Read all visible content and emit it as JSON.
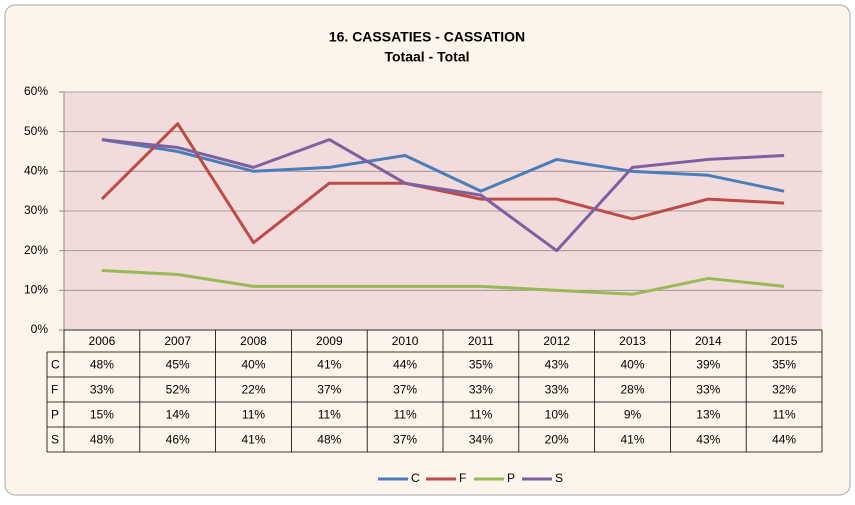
{
  "chart_data": {
    "type": "line",
    "title": "16. CASSATIES - CASSATION",
    "subtitle": "Totaal - Total",
    "categories": [
      "2006",
      "2007",
      "2008",
      "2009",
      "2010",
      "2011",
      "2012",
      "2013",
      "2014",
      "2015"
    ],
    "series": [
      {
        "name": "C",
        "color": "#4a7ebb",
        "values": [
          48,
          45,
          40,
          41,
          44,
          35,
          43,
          40,
          39,
          35
        ],
        "value_labels": [
          "48%",
          "45%",
          "40%",
          "41%",
          "44%",
          "35%",
          "43%",
          "40%",
          "39%",
          "35%"
        ]
      },
      {
        "name": "F",
        "color": "#be4b48",
        "values": [
          33,
          52,
          22,
          37,
          37,
          33,
          33,
          28,
          33,
          32
        ],
        "value_labels": [
          "33%",
          "52%",
          "22%",
          "37%",
          "37%",
          "33%",
          "33%",
          "28%",
          "33%",
          "32%"
        ]
      },
      {
        "name": "P",
        "color": "#98b954",
        "values": [
          15,
          14,
          11,
          11,
          11,
          11,
          10,
          9,
          13,
          11
        ],
        "value_labels": [
          "15%",
          "14%",
          "11%",
          "11%",
          "11%",
          "11%",
          "10%",
          "9%",
          "13%",
          "11%"
        ]
      },
      {
        "name": "S",
        "color": "#7d60a0",
        "values": [
          48,
          46,
          41,
          48,
          37,
          34,
          20,
          41,
          43,
          44
        ],
        "value_labels": [
          "48%",
          "46%",
          "41%",
          "48%",
          "37%",
          "34%",
          "20%",
          "41%",
          "43%",
          "44%"
        ]
      }
    ],
    "ylim": [
      0,
      60
    ],
    "yticks": [
      {
        "value": 0,
        "label": "0%"
      },
      {
        "value": 10,
        "label": "10%"
      },
      {
        "value": 20,
        "label": "20%"
      },
      {
        "value": 30,
        "label": "30%"
      },
      {
        "value": 40,
        "label": "40%"
      },
      {
        "value": 50,
        "label": "50%"
      },
      {
        "value": 60,
        "label": "60%"
      }
    ],
    "grid": true,
    "legend": "bottom"
  }
}
